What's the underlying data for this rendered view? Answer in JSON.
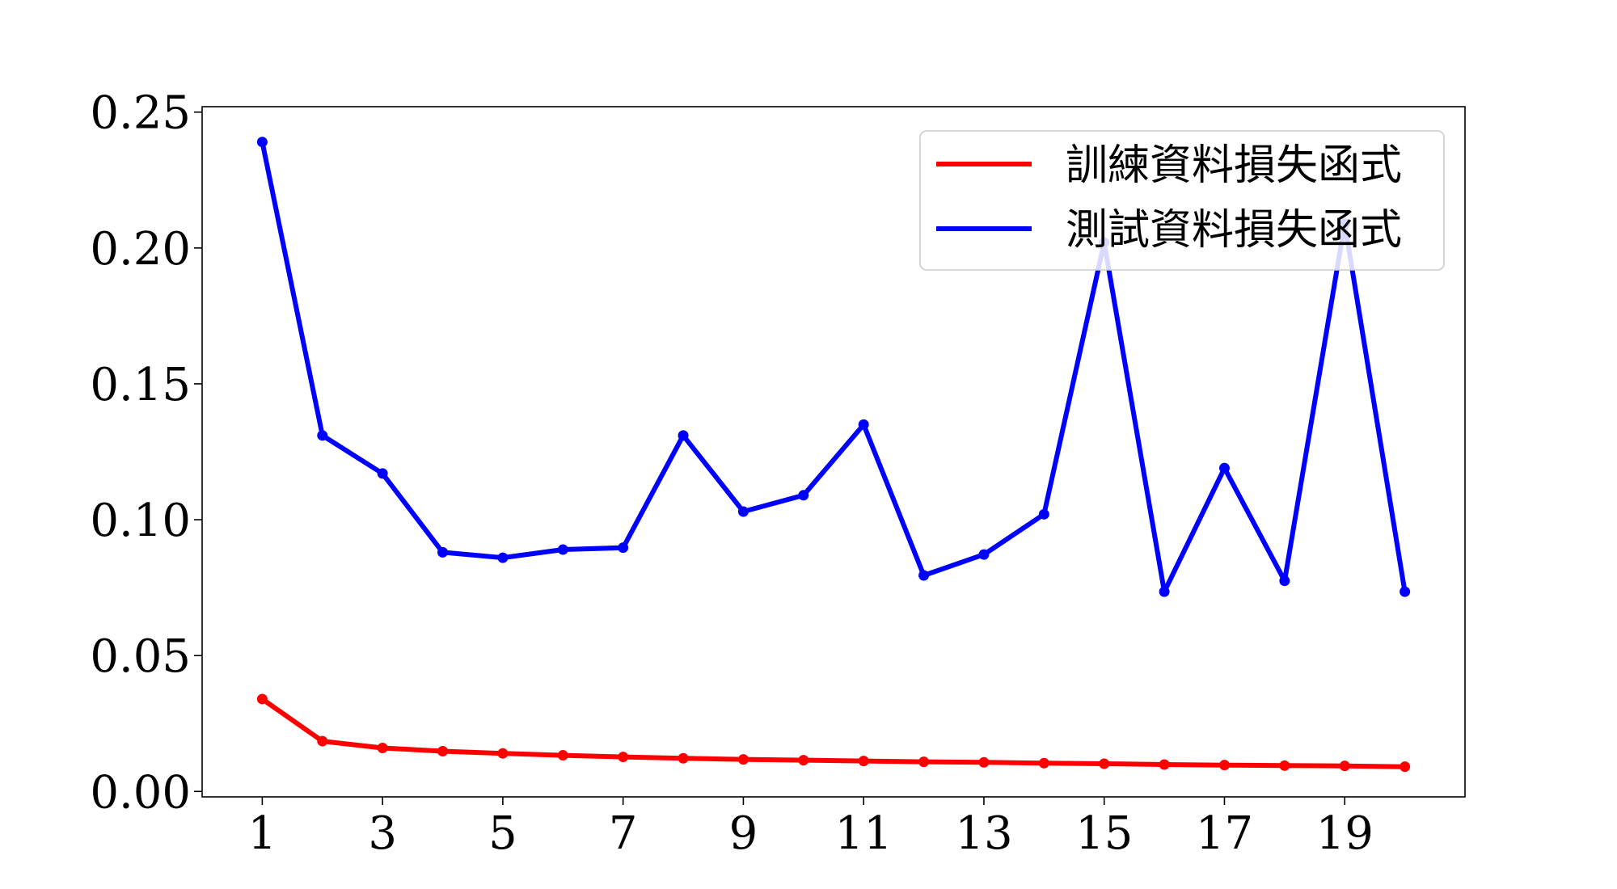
{
  "chart_data": {
    "type": "line",
    "title": "",
    "xlabel": "",
    "ylabel": "",
    "x": [
      1,
      2,
      3,
      4,
      5,
      6,
      7,
      8,
      9,
      10,
      11,
      12,
      13,
      14,
      15,
      16,
      17,
      18,
      19,
      20
    ],
    "x_tick_labels": [
      "1",
      "3",
      "5",
      "7",
      "9",
      "11",
      "13",
      "15",
      "17",
      "19"
    ],
    "y_tick_labels": [
      "0.00",
      "0.05",
      "0.10",
      "0.15",
      "0.20",
      "0.25"
    ],
    "xlim": [
      0,
      21
    ],
    "ylim": [
      -0.002,
      0.252
    ],
    "grid": false,
    "legend_position": "top-right",
    "series": [
      {
        "name": "訓練資料損失函式",
        "color": "#ff0000",
        "values": [
          0.034,
          0.0185,
          0.016,
          0.0148,
          0.014,
          0.0133,
          0.0127,
          0.0122,
          0.0118,
          0.0115,
          0.0112,
          0.0109,
          0.0107,
          0.0104,
          0.0102,
          0.0099,
          0.0097,
          0.0095,
          0.0094,
          0.0091
        ]
      },
      {
        "name": "測試資料損失函式",
        "color": "#0000ff",
        "values": [
          0.239,
          0.131,
          0.117,
          0.088,
          0.086,
          0.089,
          0.0897,
          0.131,
          0.103,
          0.109,
          0.135,
          0.0795,
          0.0872,
          0.102,
          0.202,
          0.0735,
          0.119,
          0.0775,
          0.209,
          0.0735
        ]
      }
    ]
  }
}
